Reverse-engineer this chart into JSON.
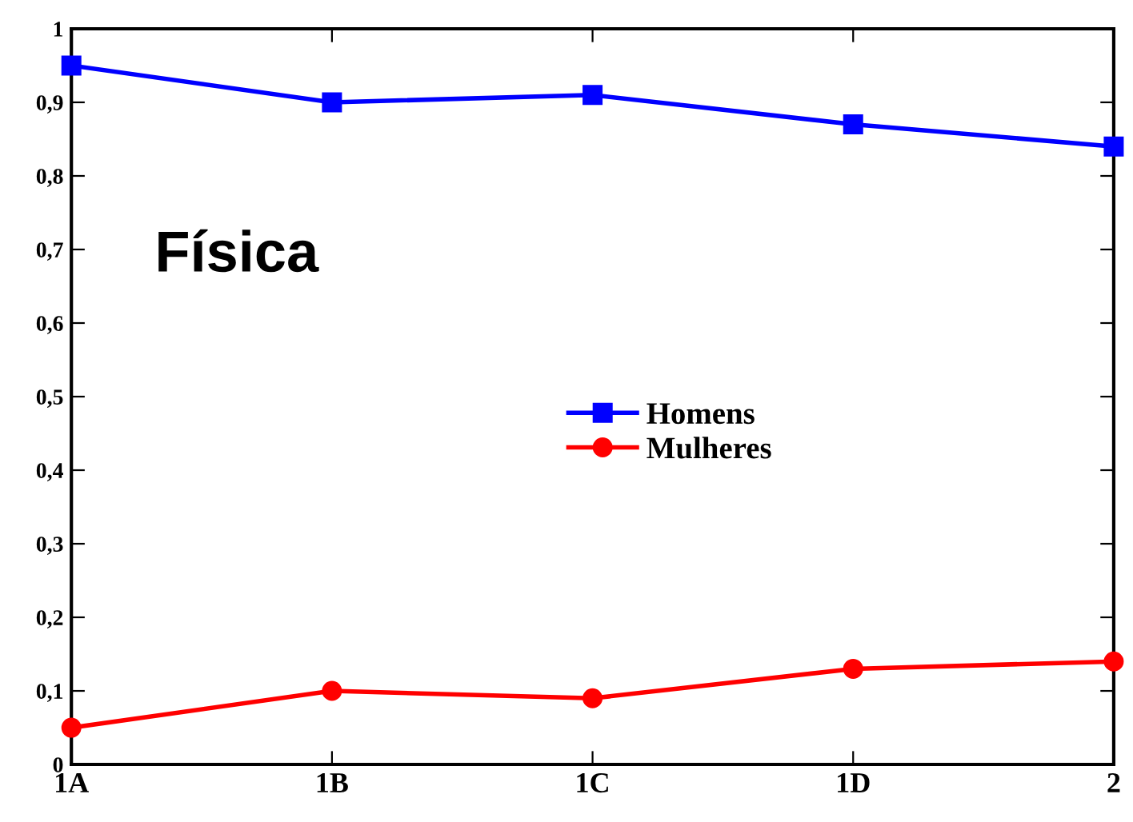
{
  "chart_data": {
    "type": "line",
    "categories": [
      "1A",
      "1B",
      "1C",
      "1D",
      "2"
    ],
    "series": [
      {
        "name": "Homens",
        "color": "#0000ff",
        "values": [
          0.95,
          0.9,
          0.91,
          0.87,
          0.84
        ],
        "marker": "square"
      },
      {
        "name": "Mulheres",
        "color": "#ff0000",
        "values": [
          0.05,
          0.1,
          0.09,
          0.13,
          0.14
        ],
        "marker": "circle"
      }
    ],
    "ylim": [
      0,
      1
    ],
    "yticks": [
      0,
      {
        "value": 0.1,
        "label": "0,1"
      },
      {
        "value": 0.2,
        "label": "0,2"
      },
      {
        "value": 0.3,
        "label": "0,3"
      },
      {
        "value": 0.4,
        "label": "0,4"
      },
      {
        "value": 0.5,
        "label": "0,5"
      },
      {
        "value": 0.6,
        "label": "0,6"
      },
      {
        "value": 0.7,
        "label": "0,7"
      },
      {
        "value": 0.8,
        "label": "0,8"
      },
      {
        "value": 0.9,
        "label": "0,9"
      },
      1
    ],
    "annotations": [
      "Física"
    ],
    "legend": "center",
    "grid": false,
    "line_style": "solid"
  }
}
